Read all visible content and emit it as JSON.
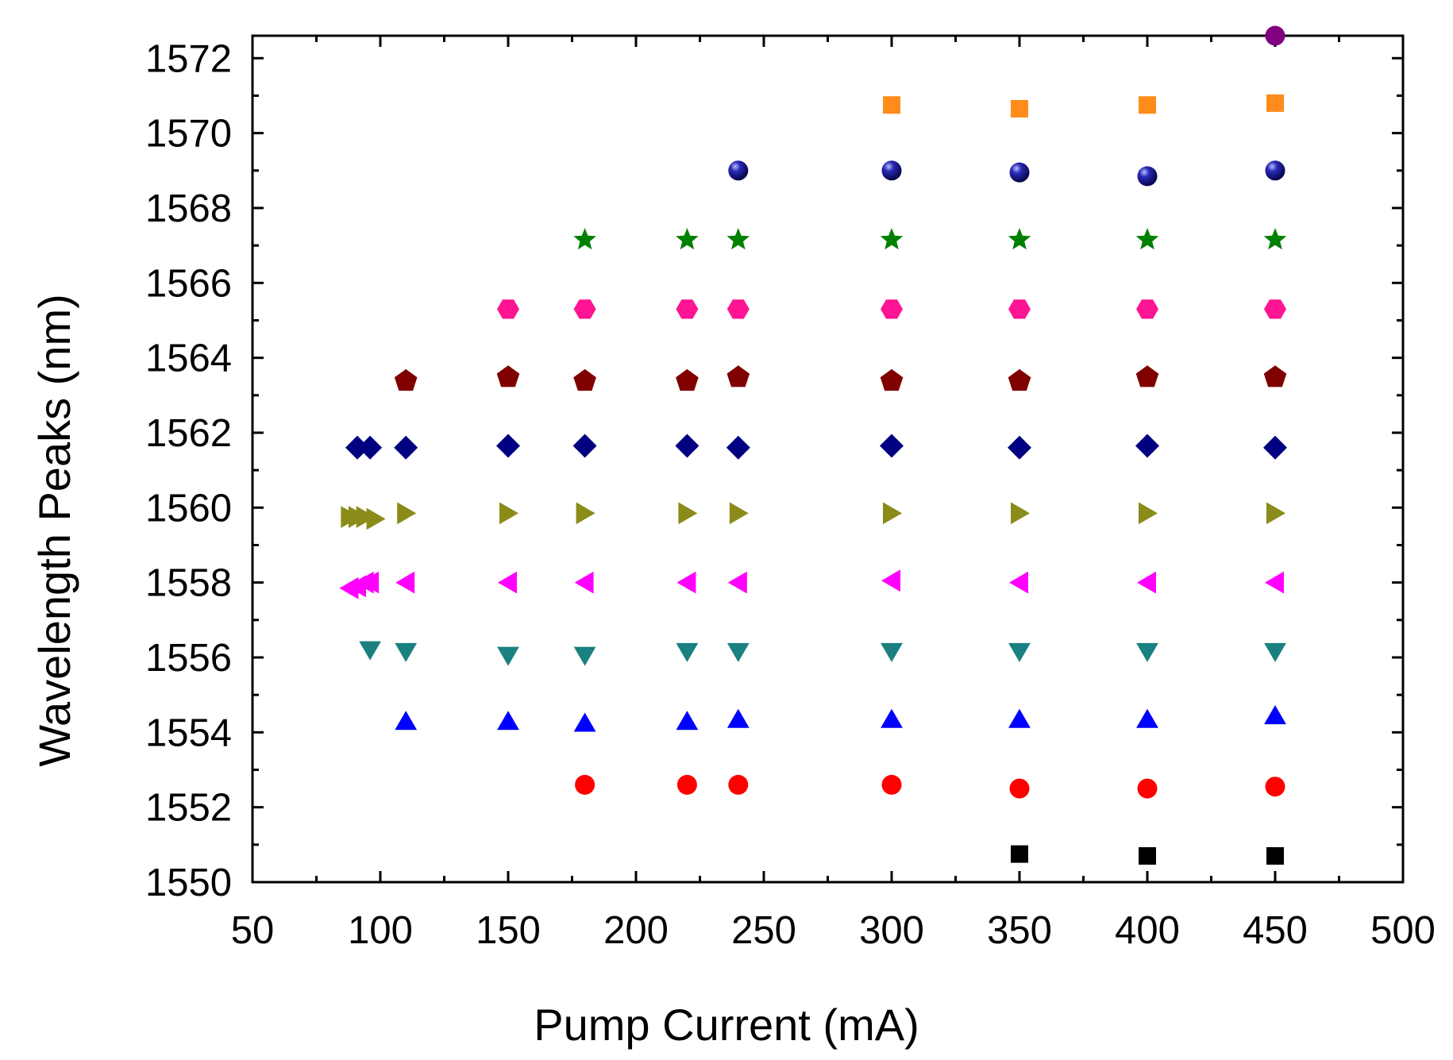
{
  "chart_data": {
    "type": "scatter",
    "title": "",
    "xlabel": "Pump Current (mA)",
    "ylabel": "Wavelength Peaks (nm)",
    "xlim": [
      50,
      500
    ],
    "ylim": [
      1550,
      1572.6
    ],
    "x_ticks": [
      50,
      100,
      150,
      200,
      250,
      300,
      350,
      400,
      450,
      500
    ],
    "y_ticks": [
      1550,
      1552,
      1554,
      1556,
      1558,
      1560,
      1562,
      1564,
      1566,
      1568,
      1570,
      1572
    ],
    "grid": false,
    "legend": "none",
    "series": [
      {
        "name": "square-black",
        "marker": "square",
        "color": "#000000",
        "points": [
          [
            350,
            1550.75
          ],
          [
            400,
            1550.7
          ],
          [
            450,
            1550.7
          ]
        ]
      },
      {
        "name": "circle-red",
        "marker": "circle",
        "color": "#ff0000",
        "points": [
          [
            180,
            1552.6
          ],
          [
            220,
            1552.6
          ],
          [
            240,
            1552.6
          ],
          [
            300,
            1552.6
          ],
          [
            350,
            1552.5
          ],
          [
            400,
            1552.5
          ],
          [
            450,
            1552.55
          ]
        ]
      },
      {
        "name": "triangle-up-blue",
        "marker": "triangle-up",
        "color": "#0000ff",
        "points": [
          [
            110,
            1554.3
          ],
          [
            150,
            1554.3
          ],
          [
            180,
            1554.25
          ],
          [
            220,
            1554.3
          ],
          [
            240,
            1554.35
          ],
          [
            300,
            1554.35
          ],
          [
            350,
            1554.35
          ],
          [
            400,
            1554.35
          ],
          [
            450,
            1554.45
          ]
        ]
      },
      {
        "name": "triangle-down-teal",
        "marker": "triangle-down",
        "color": "#1a8080",
        "points": [
          [
            96,
            1556.2
          ],
          [
            110,
            1556.15
          ],
          [
            150,
            1556.05
          ],
          [
            180,
            1556.05
          ],
          [
            220,
            1556.15
          ],
          [
            240,
            1556.15
          ],
          [
            300,
            1556.15
          ],
          [
            350,
            1556.15
          ],
          [
            400,
            1556.15
          ],
          [
            450,
            1556.15
          ]
        ]
      },
      {
        "name": "triangle-left-magenta",
        "marker": "triangle-left",
        "color": "#ff00ff",
        "points": [
          [
            88,
            1557.85
          ],
          [
            91,
            1557.9
          ],
          [
            94,
            1558.0
          ],
          [
            96,
            1558.0
          ],
          [
            110,
            1558.0
          ],
          [
            150,
            1558.0
          ],
          [
            180,
            1558.0
          ],
          [
            220,
            1558.0
          ],
          [
            240,
            1558.0
          ],
          [
            300,
            1558.05
          ],
          [
            350,
            1558.0
          ],
          [
            400,
            1558.0
          ],
          [
            450,
            1558.0
          ]
        ]
      },
      {
        "name": "triangle-right-olive",
        "marker": "triangle-right",
        "color": "#8b8b1a",
        "points": [
          [
            88,
            1559.75
          ],
          [
            91,
            1559.75
          ],
          [
            94,
            1559.75
          ],
          [
            98,
            1559.7
          ],
          [
            110,
            1559.85
          ],
          [
            150,
            1559.85
          ],
          [
            180,
            1559.85
          ],
          [
            220,
            1559.85
          ],
          [
            240,
            1559.85
          ],
          [
            300,
            1559.85
          ],
          [
            350,
            1559.85
          ],
          [
            400,
            1559.85
          ],
          [
            450,
            1559.85
          ]
        ]
      },
      {
        "name": "diamond-navy",
        "marker": "diamond",
        "color": "#000080",
        "points": [
          [
            91,
            1561.6
          ],
          [
            96,
            1561.6
          ],
          [
            110,
            1561.6
          ],
          [
            150,
            1561.65
          ],
          [
            180,
            1561.65
          ],
          [
            220,
            1561.65
          ],
          [
            240,
            1561.6
          ],
          [
            300,
            1561.65
          ],
          [
            350,
            1561.6
          ],
          [
            400,
            1561.65
          ],
          [
            450,
            1561.6
          ]
        ]
      },
      {
        "name": "pentagon-maroon",
        "marker": "pentagon",
        "color": "#800000",
        "points": [
          [
            110,
            1563.4
          ],
          [
            150,
            1563.5
          ],
          [
            180,
            1563.4
          ],
          [
            220,
            1563.4
          ],
          [
            240,
            1563.5
          ],
          [
            300,
            1563.4
          ],
          [
            350,
            1563.4
          ],
          [
            400,
            1563.5
          ],
          [
            450,
            1563.5
          ]
        ]
      },
      {
        "name": "hexagon-pink",
        "marker": "hexagon",
        "color": "#ff1493",
        "points": [
          [
            150,
            1565.3
          ],
          [
            180,
            1565.3
          ],
          [
            220,
            1565.3
          ],
          [
            240,
            1565.3
          ],
          [
            300,
            1565.3
          ],
          [
            350,
            1565.3
          ],
          [
            400,
            1565.3
          ],
          [
            450,
            1565.3
          ]
        ]
      },
      {
        "name": "star-green",
        "marker": "star",
        "color": "#008000",
        "points": [
          [
            180,
            1567.15
          ],
          [
            220,
            1567.15
          ],
          [
            240,
            1567.15
          ],
          [
            300,
            1567.15
          ],
          [
            350,
            1567.15
          ],
          [
            400,
            1567.15
          ],
          [
            450,
            1567.15
          ]
        ]
      },
      {
        "name": "sphere-navy",
        "marker": "sphere",
        "color": "#0a0a8a",
        "points": [
          [
            240,
            1569.0
          ],
          [
            300,
            1569.0
          ],
          [
            350,
            1568.95
          ],
          [
            400,
            1568.85
          ],
          [
            450,
            1569.0
          ]
        ]
      },
      {
        "name": "square-orange",
        "marker": "square",
        "color": "#ff8c1a",
        "points": [
          [
            300,
            1570.75
          ],
          [
            350,
            1570.65
          ],
          [
            400,
            1570.75
          ],
          [
            450,
            1570.8
          ]
        ]
      },
      {
        "name": "circle-purple",
        "marker": "circle",
        "color": "#800080",
        "points": [
          [
            450,
            1572.6
          ]
        ]
      }
    ]
  }
}
